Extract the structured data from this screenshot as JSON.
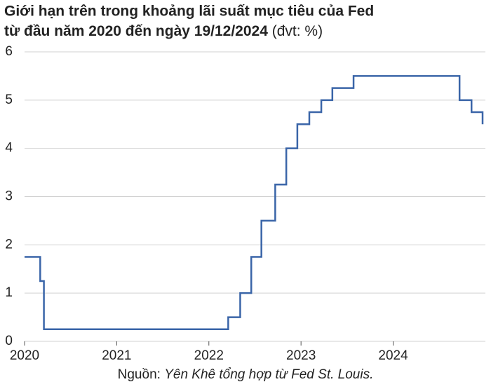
{
  "chart_data": {
    "type": "line",
    "title": [
      "Giới hạn trên trong khoảng lãi suất mục tiêu của Fed",
      "từ đầu năm 2020 đến ngày 19/12/2024"
    ],
    "unit_label": "(đvt: %)",
    "source_label": "Nguồn:",
    "source": "Yên Khê tổng hợp từ Fed St. Louis.",
    "x": [
      2020,
      2020.17,
      2020.17,
      2020.21,
      2020.21,
      2022.21,
      2022.21,
      2022.34,
      2022.34,
      2022.46,
      2022.46,
      2022.57,
      2022.57,
      2022.72,
      2022.72,
      2022.84,
      2022.84,
      2022.96,
      2022.96,
      2023.09,
      2023.09,
      2023.22,
      2023.22,
      2023.34,
      2023.34,
      2023.57,
      2023.57,
      2024.72,
      2024.72,
      2024.85,
      2024.85,
      2024.97,
      2024.97
    ],
    "series": [
      {
        "color": "#3a65a8",
        "values": [
          1.75,
          1.75,
          1.25,
          1.25,
          0.25,
          0.25,
          0.5,
          0.5,
          1.0,
          1.0,
          1.75,
          1.75,
          2.5,
          2.5,
          3.25,
          3.25,
          4.0,
          4.0,
          4.5,
          4.5,
          4.75,
          4.75,
          5.0,
          5.0,
          5.25,
          5.25,
          5.5,
          5.5,
          5.0,
          5.0,
          4.75,
          4.75,
          4.5
        ]
      }
    ],
    "xlim": [
      2020,
      2024.97
    ],
    "xticks": [
      2020,
      2021,
      2022,
      2023,
      2024
    ],
    "ylim": [
      0,
      6
    ],
    "yticks": [
      0,
      1,
      2,
      3,
      4,
      5,
      6
    ],
    "grid": true
  }
}
